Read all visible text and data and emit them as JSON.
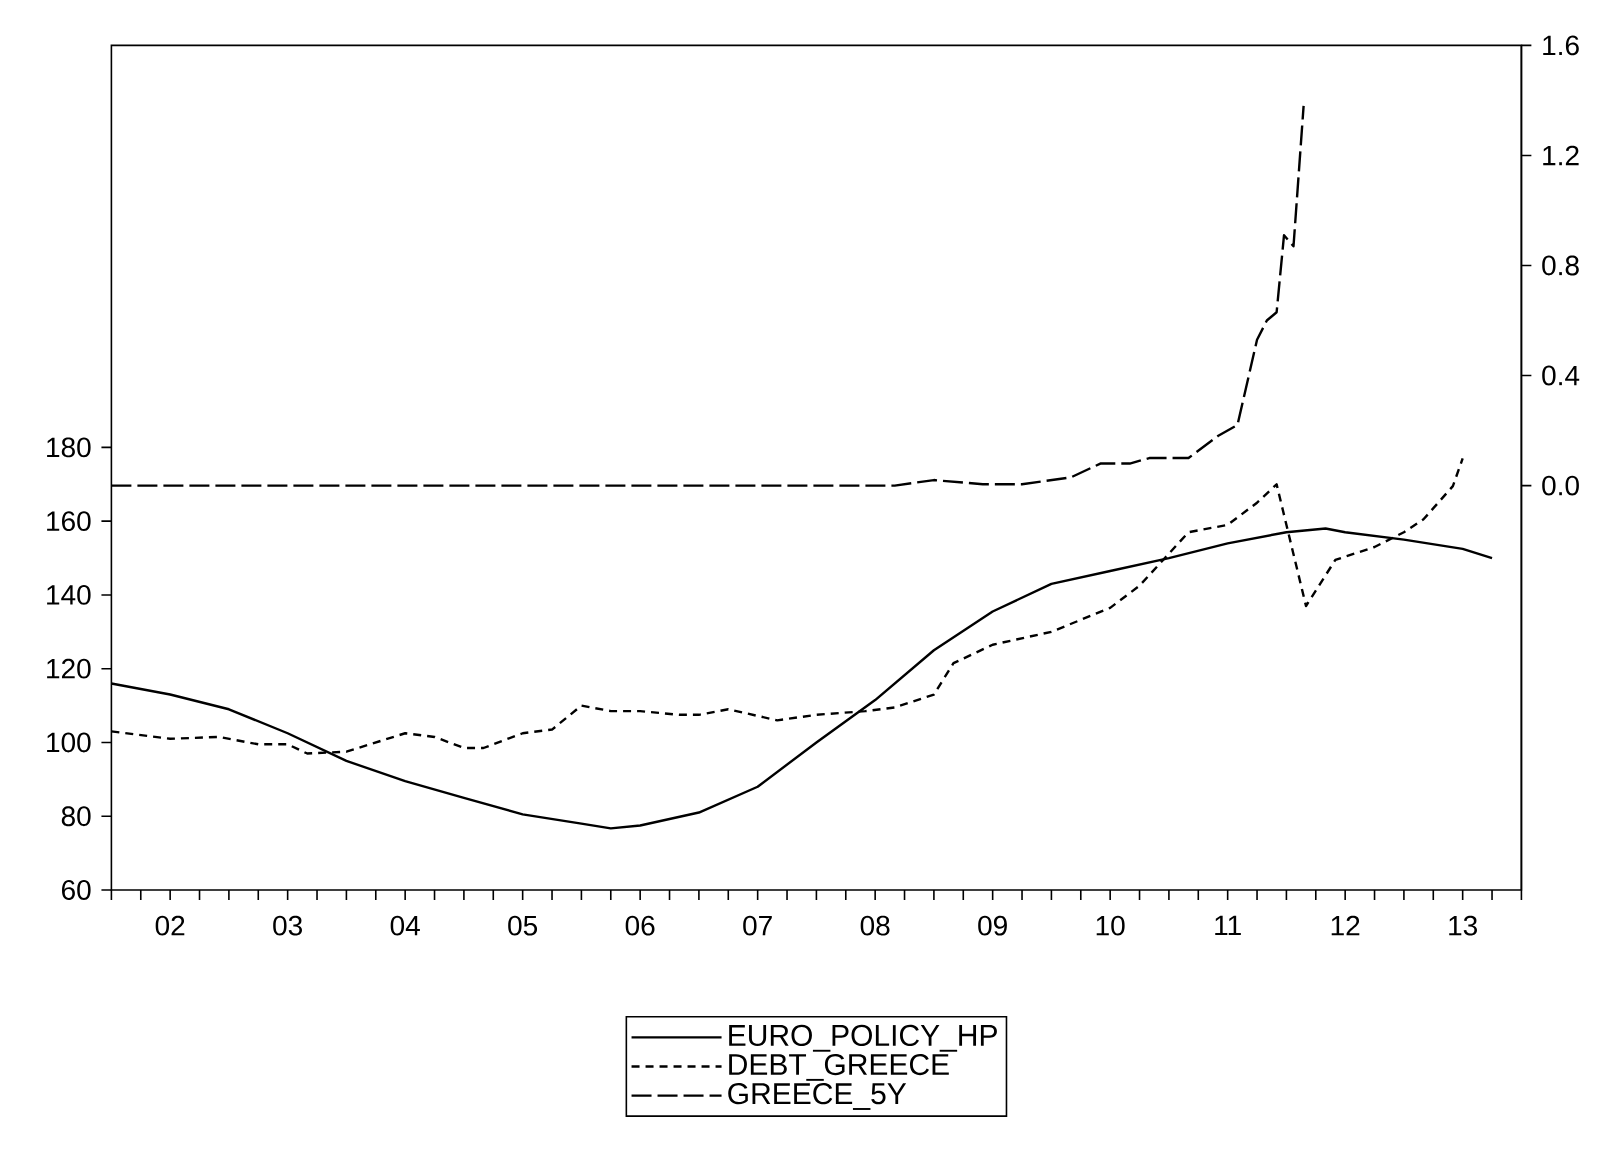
{
  "chart_data": {
    "type": "line",
    "xlim": [
      "2002-01",
      "2014-01"
    ],
    "xticks": [
      {
        "value": "2002-01",
        "label": null
      },
      {
        "value": "2002-04",
        "label": null
      },
      {
        "value": "2002-07",
        "label": "02"
      },
      {
        "value": "2002-10",
        "label": null
      },
      {
        "value": "2003-01",
        "label": null
      },
      {
        "value": "2003-04",
        "label": null
      },
      {
        "value": "2003-07",
        "label": "03"
      },
      {
        "value": "2003-10",
        "label": null
      },
      {
        "value": "2004-01",
        "label": null
      },
      {
        "value": "2004-04",
        "label": null
      },
      {
        "value": "2004-07",
        "label": "04"
      },
      {
        "value": "2004-10",
        "label": null
      },
      {
        "value": "2005-01",
        "label": null
      },
      {
        "value": "2005-04",
        "label": null
      },
      {
        "value": "2005-07",
        "label": "05"
      },
      {
        "value": "2005-10",
        "label": null
      },
      {
        "value": "2006-01",
        "label": null
      },
      {
        "value": "2006-04",
        "label": null
      },
      {
        "value": "2006-07",
        "label": "06"
      },
      {
        "value": "2006-10",
        "label": null
      },
      {
        "value": "2007-01",
        "label": null
      },
      {
        "value": "2007-04",
        "label": null
      },
      {
        "value": "2007-07",
        "label": "07"
      },
      {
        "value": "2007-10",
        "label": null
      },
      {
        "value": "2008-01",
        "label": null
      },
      {
        "value": "2008-04",
        "label": null
      },
      {
        "value": "2008-07",
        "label": "08"
      },
      {
        "value": "2008-10",
        "label": null
      },
      {
        "value": "2009-01",
        "label": null
      },
      {
        "value": "2009-04",
        "label": null
      },
      {
        "value": "2009-07",
        "label": "09"
      },
      {
        "value": "2009-10",
        "label": null
      },
      {
        "value": "2010-01",
        "label": null
      },
      {
        "value": "2010-04",
        "label": null
      },
      {
        "value": "2010-07",
        "label": "10"
      },
      {
        "value": "2010-10",
        "label": null
      },
      {
        "value": "2011-01",
        "label": null
      },
      {
        "value": "2011-04",
        "label": null
      },
      {
        "value": "2011-07",
        "label": "11"
      },
      {
        "value": "2011-10",
        "label": null
      },
      {
        "value": "2012-01",
        "label": null
      },
      {
        "value": "2012-04",
        "label": null
      },
      {
        "value": "2012-07",
        "label": "12"
      },
      {
        "value": "2012-10",
        "label": null
      },
      {
        "value": "2013-01",
        "label": null
      },
      {
        "value": "2013-04",
        "label": null
      },
      {
        "value": "2013-07",
        "label": "13"
      },
      {
        "value": "2013-10",
        "label": null
      },
      {
        "value": "2014-01",
        "label": null
      }
    ],
    "ylim": [
      60,
      289
    ],
    "yticks": [
      60,
      80,
      100,
      120,
      140,
      160,
      180
    ],
    "y2lim": [
      -1.47,
      1.6
    ],
    "y2ticks": [
      {
        "value": 0,
        "label": "0.0"
      },
      {
        "value": 0.4,
        "label": "0.4"
      },
      {
        "value": 0.8,
        "label": "0.8"
      },
      {
        "value": 1.2,
        "label": "1.2"
      },
      {
        "value": 1.6,
        "label": "1.6"
      }
    ],
    "legend": "bottom",
    "grid": false,
    "series": [
      {
        "name": "EURO_POLICY_HP",
        "color": "#000000",
        "line_style": "solid",
        "x": [
          "2002-01",
          "2002-07",
          "2003-01",
          "2003-07",
          "2004-01",
          "2004-07",
          "2005-01",
          "2005-07",
          "2006-01",
          "2006-04",
          "2006-07",
          "2007-01",
          "2007-07",
          "2008-01",
          "2008-07",
          "2009-01",
          "2009-07",
          "2010-01",
          "2010-07",
          "2011-01",
          "2011-07",
          "2012-01",
          "2012-05",
          "2012-07",
          "2013-01",
          "2013-07",
          "2013-10"
        ],
        "values": [
          116,
          113,
          109,
          102.5,
          95,
          89.5,
          85,
          80.5,
          78,
          76.7,
          77.5,
          81,
          88,
          100,
          111.5,
          125,
          135.5,
          143,
          146.5,
          150,
          154,
          157,
          158,
          157,
          155,
          152.5,
          150
        ]
      },
      {
        "name": "DEBT_GREECE",
        "color": "#000000",
        "line_style": "dotted",
        "x": [
          "2002-01",
          "2002-07",
          "2002-12",
          "2003-04",
          "2003-07",
          "2003-09",
          "2004-01",
          "2004-07",
          "2004-10",
          "2005-01",
          "2005-03",
          "2005-07",
          "2005-10",
          "2006-01",
          "2006-04",
          "2006-07",
          "2006-11",
          "2007-01",
          "2007-04",
          "2007-09",
          "2008-01",
          "2008-06",
          "2008-09",
          "2009-01",
          "2009-03",
          "2009-07",
          "2010-01",
          "2010-07",
          "2010-10",
          "2011-03",
          "2011-07",
          "2011-10",
          "2011-12",
          "2012-03",
          "2012-06",
          "2012-10",
          "2013-01",
          "2013-03",
          "2013-06",
          "2013-07"
        ],
        "values": [
          103,
          101,
          101.5,
          99.5,
          99.5,
          97,
          97.5,
          102.5,
          101.5,
          98.5,
          98.5,
          102.5,
          103.5,
          110,
          108.5,
          108.5,
          107.5,
          107.5,
          109,
          106,
          107.5,
          108.5,
          109.5,
          113,
          121.5,
          126.5,
          130,
          136.5,
          142.5,
          157,
          159,
          165,
          170,
          137,
          149.5,
          153,
          157,
          160.5,
          169.5,
          177
        ]
      },
      {
        "name": "GREECE_5Y",
        "color": "#000000",
        "line_style": "dashed",
        "axis": "y2",
        "x": [
          "2002-01",
          "2004-01",
          "2006-01",
          "2008-01",
          "2008-09",
          "2009-01",
          "2009-06",
          "2009-10",
          "2010-03",
          "2010-06",
          "2010-09",
          "2010-11",
          "2011-03",
          "2011-06",
          "2011-08",
          "2011-10-01",
          "2011-11-01",
          "2011-12-01",
          "2011-12-24",
          "2012-01-23",
          "2012-02-24"
        ],
        "values": [
          0,
          0,
          0,
          0,
          0,
          0.02,
          0.005,
          0.005,
          0.03,
          0.08,
          0.08,
          0.1,
          0.1,
          0.18,
          0.22,
          0.53,
          0.6,
          0.63,
          0.91,
          0.87,
          1.38
        ]
      }
    ]
  }
}
